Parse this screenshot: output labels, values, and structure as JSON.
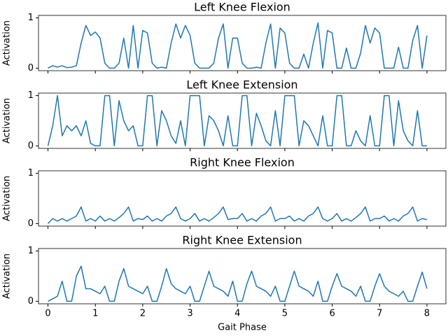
{
  "chart_data": [
    {
      "type": "line",
      "title": "Left Knee Flexion",
      "ylabel": "Activation",
      "x": [
        0,
        0.1,
        0.2,
        0.3,
        0.4,
        0.5,
        0.6,
        0.7,
        0.8,
        0.9,
        1,
        1.1,
        1.2,
        1.3,
        1.4,
        1.5,
        1.6,
        1.7,
        1.8,
        1.9,
        2,
        2.1,
        2.2,
        2.3,
        2.4,
        2.5,
        2.6,
        2.7,
        2.8,
        2.9,
        3,
        3.1,
        3.2,
        3.3,
        3.4,
        3.5,
        3.6,
        3.7,
        3.8,
        3.9,
        4,
        4.1,
        4.2,
        4.3,
        4.4,
        4.5,
        4.6,
        4.7,
        4.8,
        4.9,
        5,
        5.1,
        5.2,
        5.3,
        5.4,
        5.5,
        5.6,
        5.7,
        5.8,
        5.9,
        6,
        6.1,
        6.2,
        6.3,
        6.4,
        6.5,
        6.6,
        6.7,
        6.8,
        6.9,
        7,
        7.1,
        7.2,
        7.3,
        7.4,
        7.5,
        7.6,
        7.7,
        7.8,
        7.9,
        8
      ],
      "series": [
        {
          "name": "Left Knee Flexion",
          "color": "#1f77b4",
          "values": [
            0,
            0.05,
            0.02,
            0.05,
            0.01,
            0.02,
            0.05,
            0.5,
            0.85,
            0.65,
            0.72,
            0.6,
            0.1,
            0,
            0,
            0.1,
            0.6,
            0,
            0.85,
            0,
            0.75,
            0.7,
            0.1,
            0,
            0.02,
            0,
            0.5,
            0.88,
            0.6,
            0.85,
            0.65,
            0.1,
            0,
            0,
            0,
            0.1,
            0.6,
            0.88,
            0,
            0.6,
            0.6,
            0.1,
            0,
            0,
            0.02,
            0,
            0.5,
            0.88,
            0,
            0.8,
            0.7,
            0.1,
            0,
            0,
            0.28,
            0,
            0.5,
            0.9,
            0,
            0.75,
            0.7,
            0,
            0,
            0.4,
            0,
            0,
            0.3,
            0.85,
            0.5,
            0.8,
            0.7,
            0,
            0,
            0,
            0.42,
            0,
            0,
            0.55,
            0.85,
            0,
            0.65
          ]
        }
      ],
      "xlim": [
        -0.2,
        8.4
      ],
      "xticks": [
        0,
        1,
        2,
        3,
        4,
        5,
        6,
        7,
        8
      ],
      "ylim": [
        -0.05,
        1.05
      ],
      "yticks": [
        0,
        1
      ]
    },
    {
      "type": "line",
      "title": "Left Knee Extension",
      "ylabel": "Activation",
      "x": [
        0,
        0.1,
        0.2,
        0.3,
        0.4,
        0.5,
        0.6,
        0.7,
        0.8,
        0.9,
        1,
        1.1,
        1.2,
        1.3,
        1.4,
        1.5,
        1.6,
        1.7,
        1.8,
        1.9,
        2,
        2.1,
        2.2,
        2.3,
        2.4,
        2.5,
        2.6,
        2.7,
        2.8,
        2.9,
        3,
        3.1,
        3.2,
        3.3,
        3.4,
        3.5,
        3.6,
        3.7,
        3.8,
        3.9,
        4,
        4.1,
        4.2,
        4.3,
        4.4,
        4.5,
        4.6,
        4.7,
        4.8,
        4.9,
        5,
        5.1,
        5.2,
        5.3,
        5.4,
        5.5,
        5.6,
        5.7,
        5.8,
        5.9,
        6,
        6.1,
        6.2,
        6.3,
        6.4,
        6.5,
        6.6,
        6.7,
        6.8,
        6.9,
        7,
        7.1,
        7.2,
        7.3,
        7.4,
        7.5,
        7.6,
        7.7,
        7.8,
        7.9,
        8
      ],
      "series": [
        {
          "name": "Left Knee Extension",
          "color": "#1f77b4",
          "values": [
            0,
            0.4,
            1,
            0.2,
            0.4,
            0.3,
            0.4,
            0.2,
            0.5,
            0.05,
            0,
            0,
            1,
            1,
            0,
            0.9,
            0.5,
            0.3,
            0.4,
            0,
            0,
            1,
            1,
            0,
            0.7,
            0.5,
            0.2,
            0.05,
            0.5,
            0,
            1,
            1,
            1,
            0,
            0.6,
            0.5,
            0.3,
            0,
            0.6,
            0,
            0,
            1,
            1,
            0,
            0.65,
            0.4,
            0.1,
            0,
            0.7,
            0,
            1,
            1,
            1,
            0,
            0.5,
            0.4,
            0.2,
            0,
            0.6,
            0,
            0,
            1,
            1,
            0,
            0,
            0.3,
            0.1,
            0,
            0.6,
            0,
            0,
            1,
            1,
            0,
            0.9,
            0.3,
            0.1,
            0,
            0.7,
            0,
            0
          ]
        }
      ],
      "xlim": [
        -0.2,
        8.4
      ],
      "xticks": [
        0,
        1,
        2,
        3,
        4,
        5,
        6,
        7,
        8
      ],
      "ylim": [
        -0.05,
        1.05
      ],
      "yticks": [
        0,
        1
      ]
    },
    {
      "type": "line",
      "title": "Right Knee Flexion",
      "ylabel": "Activation",
      "x": [
        0,
        0.1,
        0.2,
        0.3,
        0.4,
        0.5,
        0.6,
        0.7,
        0.8,
        0.9,
        1,
        1.1,
        1.2,
        1.3,
        1.4,
        1.5,
        1.6,
        1.7,
        1.8,
        1.9,
        2,
        2.1,
        2.2,
        2.3,
        2.4,
        2.5,
        2.6,
        2.7,
        2.8,
        2.9,
        3,
        3.1,
        3.2,
        3.3,
        3.4,
        3.5,
        3.6,
        3.7,
        3.8,
        3.9,
        4,
        4.1,
        4.2,
        4.3,
        4.4,
        4.5,
        4.6,
        4.7,
        4.8,
        4.9,
        5,
        5.1,
        5.2,
        5.3,
        5.4,
        5.5,
        5.6,
        5.7,
        5.8,
        5.9,
        6,
        6.1,
        6.2,
        6.3,
        6.4,
        6.5,
        6.6,
        6.7,
        6.8,
        6.9,
        7,
        7.1,
        7.2,
        7.3,
        7.4,
        7.5,
        7.6,
        7.7,
        7.8,
        7.9,
        8
      ],
      "series": [
        {
          "name": "Right Knee Flexion",
          "color": "#1f77b4",
          "values": [
            0,
            0.1,
            0.05,
            0.1,
            0.05,
            0.1,
            0.15,
            0.33,
            0.05,
            0.1,
            0.05,
            0.15,
            0.05,
            0.1,
            0.05,
            0.12,
            0.2,
            0.33,
            0.05,
            0.1,
            0.08,
            0.15,
            0.05,
            0.1,
            0.05,
            0.15,
            0.2,
            0.33,
            0.1,
            0.05,
            0.1,
            0.2,
            0.05,
            0.1,
            0.05,
            0.12,
            0.2,
            0.33,
            0.08,
            0.1,
            0.1,
            0.2,
            0.05,
            0.1,
            0.05,
            0.15,
            0.2,
            0.33,
            0.05,
            0.1,
            0.1,
            0.15,
            0.05,
            0.1,
            0.05,
            0.15,
            0.2,
            0.33,
            0.1,
            0.05,
            0.1,
            0.2,
            0.05,
            0.1,
            0.05,
            0.12,
            0.2,
            0.33,
            0.05,
            0.1,
            0.1,
            0.15,
            0.05,
            0.1,
            0.05,
            0.15,
            0.2,
            0.33,
            0.05,
            0.1,
            0.08
          ]
        }
      ],
      "xlim": [
        -0.2,
        8.4
      ],
      "xticks": [
        0,
        1,
        2,
        3,
        4,
        5,
        6,
        7,
        8
      ],
      "ylim": [
        -0.05,
        1.05
      ],
      "yticks": [
        0,
        1
      ]
    },
    {
      "type": "line",
      "title": "Right Knee Extension",
      "ylabel": "Activation",
      "xlabel": "Gait Phase",
      "x": [
        0,
        0.1,
        0.2,
        0.3,
        0.4,
        0.5,
        0.6,
        0.7,
        0.8,
        0.9,
        1,
        1.1,
        1.2,
        1.3,
        1.4,
        1.5,
        1.6,
        1.7,
        1.8,
        1.9,
        2,
        2.1,
        2.2,
        2.3,
        2.4,
        2.5,
        2.6,
        2.7,
        2.8,
        2.9,
        3,
        3.1,
        3.2,
        3.3,
        3.4,
        3.5,
        3.6,
        3.7,
        3.8,
        3.9,
        4,
        4.1,
        4.2,
        4.3,
        4.4,
        4.5,
        4.6,
        4.7,
        4.8,
        4.9,
        5,
        5.1,
        5.2,
        5.3,
        5.4,
        5.5,
        5.6,
        5.7,
        5.8,
        5.9,
        6,
        6.1,
        6.2,
        6.3,
        6.4,
        6.5,
        6.6,
        6.7,
        6.8,
        6.9,
        7,
        7.1,
        7.2,
        7.3,
        7.4,
        7.5,
        7.6,
        7.7,
        7.8,
        7.9,
        8
      ],
      "series": [
        {
          "name": "Right Knee Extension",
          "color": "#1f77b4",
          "values": [
            0,
            0.05,
            0.1,
            0.4,
            0,
            0,
            0.5,
            0.7,
            0.25,
            0.25,
            0.2,
            0.15,
            0.3,
            0,
            0,
            0.4,
            0.65,
            0.3,
            0.25,
            0.2,
            0.15,
            0.3,
            0,
            0,
            0.3,
            0.65,
            0.35,
            0.25,
            0.2,
            0.15,
            0.3,
            0,
            0,
            0.3,
            0.6,
            0.3,
            0.25,
            0.2,
            0.1,
            0.4,
            0,
            0,
            0.35,
            0.6,
            0.3,
            0.25,
            0.2,
            0.1,
            0.3,
            0,
            0,
            0.3,
            0.6,
            0.3,
            0.25,
            0.2,
            0.1,
            0.4,
            0,
            0,
            0.3,
            0.55,
            0.3,
            0.25,
            0.2,
            0.1,
            0.3,
            0,
            0,
            0.3,
            0.55,
            0.3,
            0.2,
            0.15,
            0.1,
            0.2,
            0,
            0,
            0.3,
            0.58,
            0.25
          ]
        }
      ],
      "xlim": [
        -0.2,
        8.4
      ],
      "xticks": [
        0,
        1,
        2,
        3,
        4,
        5,
        6,
        7,
        8
      ],
      "ylim": [
        -0.05,
        1.05
      ],
      "yticks": [
        0,
        1
      ]
    }
  ]
}
